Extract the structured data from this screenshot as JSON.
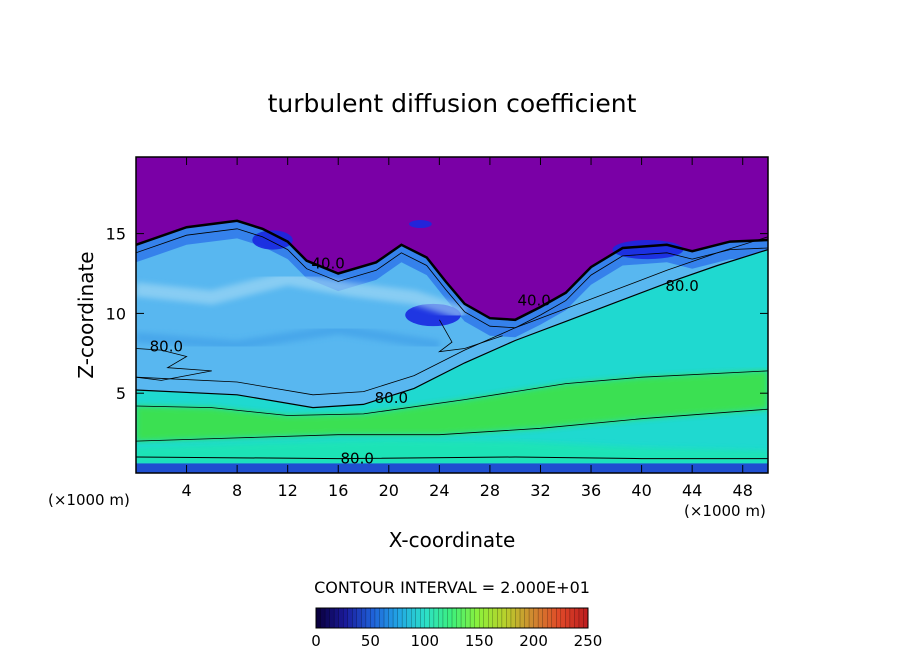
{
  "chart_data": {
    "type": "heatmap",
    "title": "turbulent diffusion coefficient",
    "xlabel": "X-coordinate",
    "ylabel": "Z-coordinate",
    "x_unit_left": "(×1000 m)",
    "x_unit_right": "(×1000 m)",
    "xlim": [
      0,
      50
    ],
    "ylim": [
      0,
      19.8
    ],
    "x_ticks": [
      4,
      8,
      12,
      16,
      20,
      24,
      28,
      32,
      36,
      40,
      44,
      48
    ],
    "x_tick_labels": [
      "4",
      "8",
      "12",
      "16",
      "20",
      "24",
      "28",
      "32",
      "36",
      "40",
      "44",
      "48"
    ],
    "y_ticks": [
      5,
      10,
      15
    ],
    "y_tick_labels": [
      "5",
      "10",
      "15"
    ],
    "contour_interval_label": "CONTOUR INTERVAL = 2.000E+01",
    "contour_labels": [
      {
        "text": "40.0",
        "x": 15.2,
        "y": 12.8
      },
      {
        "text": "80.0",
        "x": 2.4,
        "y": 7.6
      },
      {
        "text": "80.0",
        "x": 20.2,
        "y": 4.4
      },
      {
        "text": "80.0",
        "x": 17.5,
        "y": 0.6
      },
      {
        "text": "40.0",
        "x": 31.5,
        "y": 10.5
      },
      {
        "text": "80.0",
        "x": 43.2,
        "y": 11.4
      }
    ],
    "boundary_curve": [
      [
        0,
        14.3
      ],
      [
        4,
        15.4
      ],
      [
        8,
        15.8
      ],
      [
        10,
        15.3
      ],
      [
        12,
        14.5
      ],
      [
        13.5,
        13.3
      ],
      [
        16,
        12.5
      ],
      [
        19,
        13.2
      ],
      [
        21,
        14.3
      ],
      [
        23,
        13.5
      ],
      [
        24.5,
        12.0
      ],
      [
        26,
        10.6
      ],
      [
        28,
        9.7
      ],
      [
        30,
        9.6
      ],
      [
        32,
        10.4
      ],
      [
        34,
        11.3
      ],
      [
        36,
        12.9
      ],
      [
        38.5,
        14.1
      ],
      [
        42,
        14.3
      ],
      [
        44,
        13.9
      ],
      [
        47,
        14.5
      ],
      [
        50,
        14.6
      ]
    ],
    "shear_band_curve": [
      [
        0,
        5.2
      ],
      [
        8,
        4.9
      ],
      [
        14,
        4.1
      ],
      [
        18,
        4.3
      ],
      [
        22,
        5.3
      ],
      [
        26,
        6.9
      ],
      [
        30,
        8.3
      ],
      [
        34,
        9.5
      ],
      [
        38,
        10.7
      ],
      [
        42,
        11.9
      ],
      [
        46,
        13.0
      ],
      [
        50,
        14.0
      ]
    ],
    "colorbar": {
      "min": 0,
      "max": 250,
      "ticks": [
        0,
        50,
        100,
        150,
        200,
        250
      ],
      "tick_labels": [
        "0",
        "50",
        "100",
        "150",
        "200",
        "250"
      ],
      "colors": [
        "#0a0040",
        "#1a1a9a",
        "#1f5fd8",
        "#22a6e6",
        "#2ce0c8",
        "#3ef07a",
        "#8ef03a",
        "#b8d02c",
        "#d08a30",
        "#e04a28",
        "#c02020"
      ]
    },
    "colors": {
      "background_top": "#7a00a6",
      "upper_layer": "#58b7f0",
      "dark_blue": "#1a28e0",
      "cyan_layer": "#1fd9d0",
      "green_band": "#3fe23c",
      "aqua_band": "#1ee6b0"
    }
  }
}
